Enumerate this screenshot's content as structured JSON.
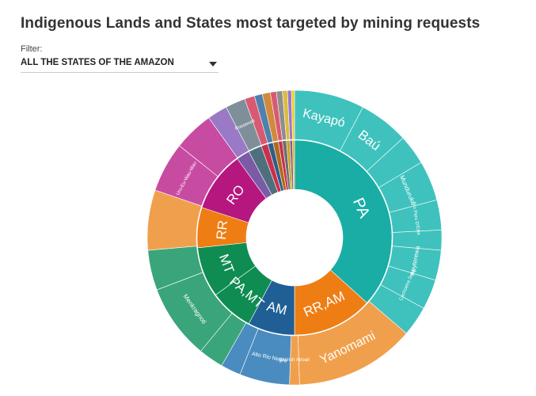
{
  "title": "Indigenous Lands and States most targeted by mining requests",
  "filter": {
    "label": "Filter:",
    "selected": "ALL THE STATES OF THE AMAZON"
  },
  "chart_data": {
    "type": "sunburst",
    "title": "Indigenous Lands and States most targeted by mining requests",
    "inner": [
      {
        "name": "PA",
        "value": 33.0,
        "color": "#1aada5",
        "label_size": 20
      },
      {
        "name": "RR,AM",
        "value": 12.0,
        "color": "#ee7d14",
        "label_size": 17
      },
      {
        "name": "AM",
        "value": 7.0,
        "color": "#1f5f95",
        "label_size": 17
      },
      {
        "name": "PA,MT",
        "value": 6.5,
        "color": "#0f8c52",
        "label_size": 17
      },
      {
        "name": "MT",
        "value": 7.5,
        "color": "#0f8c52",
        "label_size": 17
      },
      {
        "name": "RR",
        "value": 6.0,
        "color": "#ee7d14",
        "label_size": 17
      },
      {
        "name": "RO",
        "value": 9.0,
        "color": "#b5177f",
        "label_size": 17
      },
      {
        "name": "",
        "value": 2.0,
        "color": "#7b5aa6",
        "label_size": 10
      },
      {
        "name": "",
        "value": 2.0,
        "color": "#4f6f7f",
        "label_size": 10
      },
      {
        "name": "",
        "value": 1.0,
        "color": "#c9304c",
        "label_size": 10
      },
      {
        "name": "",
        "value": 0.8,
        "color": "#2c5d8a",
        "label_size": 10
      },
      {
        "name": "",
        "value": 0.8,
        "color": "#b06a1a",
        "label_size": 10
      },
      {
        "name": "",
        "value": 0.6,
        "color": "#c9304c",
        "label_size": 10
      },
      {
        "name": "",
        "value": 0.6,
        "color": "#6e6e6e",
        "label_size": 10
      },
      {
        "name": "",
        "value": 0.5,
        "color": "#c9a11a",
        "label_size": 10
      },
      {
        "name": "",
        "value": 0.4,
        "color": "#7b5aa6",
        "label_size": 10
      },
      {
        "name": "",
        "value": 0.3,
        "color": "#e0b600",
        "label_size": 10
      }
    ],
    "outer": [
      {
        "name": "Kayapó",
        "value": 7.0,
        "color": "#3fc2be",
        "label_size": 16
      },
      {
        "name": "Baú",
        "value": 5.0,
        "color": "#3fc2be",
        "label_size": 17
      },
      {
        "name": "",
        "value": 3.0,
        "color": "#3fc2be",
        "label_size": 8
      },
      {
        "name": "Munduruku",
        "value": 4.0,
        "color": "#3fc2be",
        "label_size": 8
      },
      {
        "name": "Rio Paru D'Este",
        "value": 3.0,
        "color": "#3fc2be",
        "label_size": 6
      },
      {
        "name": "",
        "value": 2.0,
        "color": "#3fc2be",
        "label_size": 6
      },
      {
        "name": "Apyterewa",
        "value": 3.0,
        "color": "#3fc2be",
        "label_size": 8
      },
      {
        "name": "Cachoeira Seca",
        "value": 3.0,
        "color": "#3fc2be",
        "label_size": 6
      },
      {
        "name": "",
        "value": 3.0,
        "color": "#3fc2be",
        "label_size": 6
      },
      {
        "name": "Yanomami",
        "value": 12.0,
        "color": "#f0a04c",
        "label_size": 16
      },
      {
        "name": "Waimiri Atroari",
        "value": 1.0,
        "color": "#f0a04c",
        "label_size": 6
      },
      {
        "name": "Alto Rio Negro",
        "value": 5.0,
        "color": "#4a8cbf",
        "label_size": 7
      },
      {
        "name": "",
        "value": 2.0,
        "color": "#4a8cbf",
        "label_size": 6
      },
      {
        "name": "",
        "value": 2.5,
        "color": "#3aa57a",
        "label_size": 6
      },
      {
        "name": "Menkragnoti",
        "value": 7.5,
        "color": "#3aa57a",
        "label_size": 8
      },
      {
        "name": "",
        "value": 4.0,
        "color": "#3aa57a",
        "label_size": 6
      },
      {
        "name": "",
        "value": 6.0,
        "color": "#f0a04c",
        "label_size": 6
      },
      {
        "name": "Uru-Eu-Wau-Wau",
        "value": 5.0,
        "color": "#c84ba2",
        "label_size": 6
      },
      {
        "name": "",
        "value": 4.0,
        "color": "#c84ba2",
        "label_size": 6
      },
      {
        "name": "",
        "value": 2.0,
        "color": "#9a79c6",
        "label_size": 6
      },
      {
        "name": "Roosevelt",
        "value": 2.0,
        "color": "#7f8f9a",
        "label_size": 6
      },
      {
        "name": "",
        "value": 1.0,
        "color": "#d85a72",
        "label_size": 6
      },
      {
        "name": "",
        "value": 0.8,
        "color": "#4f80ae",
        "label_size": 6
      },
      {
        "name": "",
        "value": 0.8,
        "color": "#d08a3a",
        "label_size": 6
      },
      {
        "name": "",
        "value": 0.6,
        "color": "#d85a72",
        "label_size": 6
      },
      {
        "name": "",
        "value": 0.6,
        "color": "#8e8e8e",
        "label_size": 6
      },
      {
        "name": "",
        "value": 0.5,
        "color": "#dcbc40",
        "label_size": 6
      },
      {
        "name": "",
        "value": 0.4,
        "color": "#9a79c6",
        "label_size": 6
      },
      {
        "name": "",
        "value": 0.3,
        "color": "#f0cc30",
        "label_size": 6
      }
    ]
  }
}
